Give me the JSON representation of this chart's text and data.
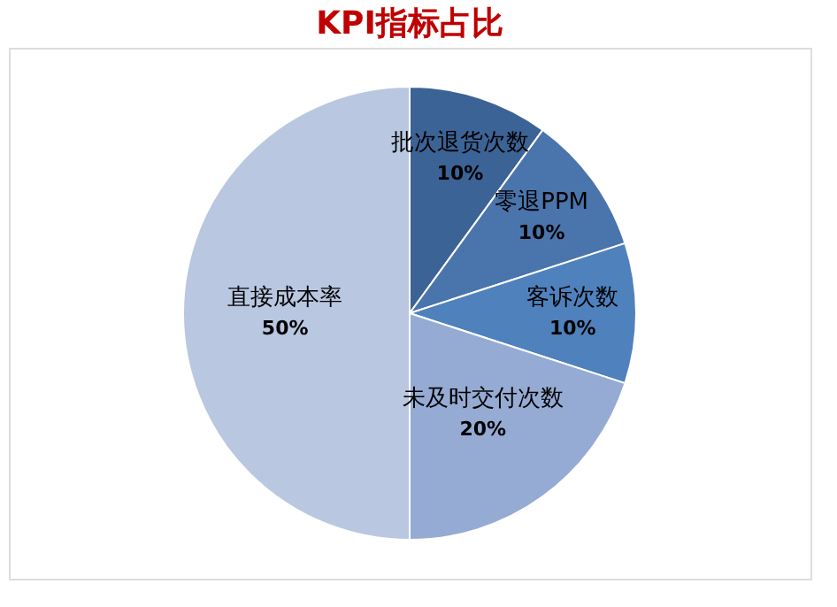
{
  "chart_data": {
    "type": "pie",
    "title": "KPI指标占比",
    "categories": [
      "批次退货次数",
      "零退PPM",
      "客诉次数",
      "未及时交付次数",
      "直接成本率"
    ],
    "values": [
      10,
      10,
      10,
      20,
      50
    ],
    "value_labels": [
      "10%",
      "10%",
      "10%",
      "20%",
      "50%"
    ],
    "colors": [
      "#3c6396",
      "#4a74ac",
      "#4f81bd",
      "#95abd3",
      "#b9c7e1"
    ]
  }
}
